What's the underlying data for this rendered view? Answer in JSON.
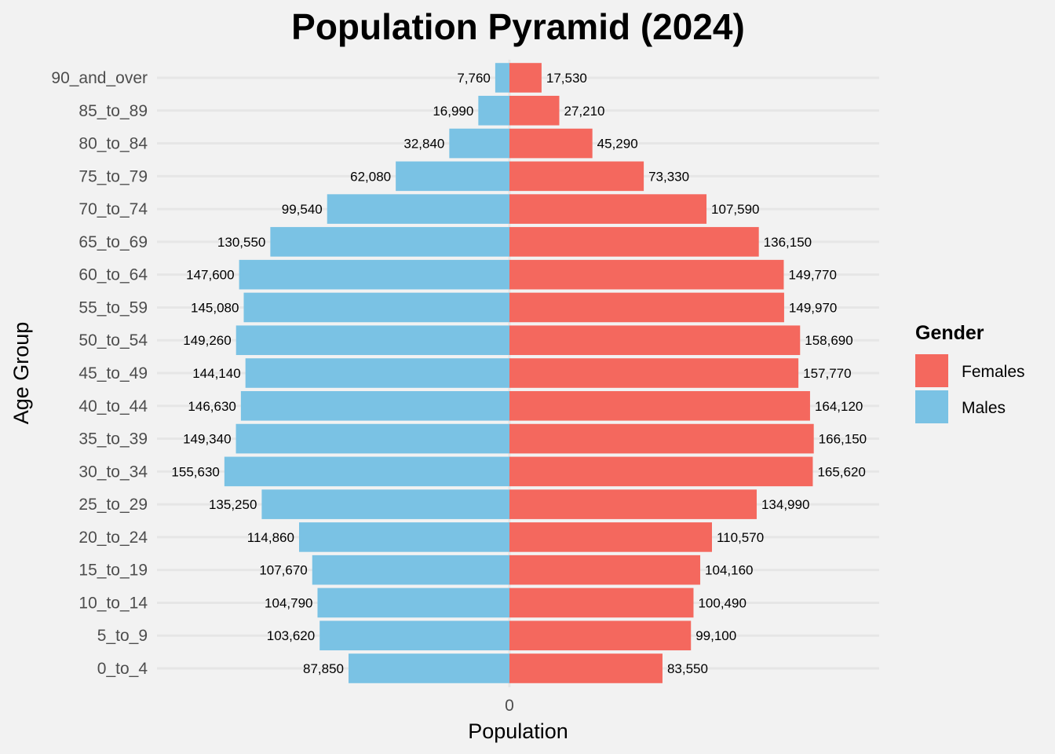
{
  "chart_data": {
    "type": "bar",
    "orientation": "horizontal",
    "title": "Population Pyramid (2024)",
    "xlabel": "Population",
    "ylabel": "Age Group",
    "x_tick_labels": [
      "0"
    ],
    "categories": [
      "0_to_4",
      "5_to_9",
      "10_to_14",
      "15_to_19",
      "20_to_24",
      "25_to_29",
      "30_to_34",
      "35_to_39",
      "40_to_44",
      "45_to_49",
      "50_to_54",
      "55_to_59",
      "60_to_64",
      "65_to_69",
      "70_to_74",
      "75_to_79",
      "80_to_84",
      "85_to_89",
      "90_and_over"
    ],
    "series": [
      {
        "name": "Males",
        "side": "left",
        "color": "#7ac2e4",
        "values": [
          87850,
          103620,
          104790,
          107670,
          114860,
          135250,
          155630,
          149340,
          146630,
          144140,
          149260,
          145080,
          147600,
          130550,
          99540,
          62080,
          32840,
          16990,
          7760
        ],
        "labels": [
          "87,850",
          "103,620",
          "104,790",
          "107,670",
          "114,860",
          "135,250",
          "155,630",
          "149,340",
          "146,630",
          "144,140",
          "149,260",
          "145,080",
          "147,600",
          "130,550",
          "99,540",
          "62,080",
          "32,840",
          "16,990",
          "7,760"
        ]
      },
      {
        "name": "Females",
        "side": "right",
        "color": "#f4685e",
        "values": [
          83550,
          99100,
          100490,
          104160,
          110570,
          134990,
          165620,
          166150,
          164120,
          157770,
          158690,
          149970,
          149770,
          136150,
          107590,
          73330,
          45290,
          27210,
          17530
        ],
        "labels": [
          "83,550",
          "99,100",
          "100,490",
          "104,160",
          "110,570",
          "134,990",
          "165,620",
          "166,150",
          "164,120",
          "157,770",
          "158,690",
          "149,970",
          "149,770",
          "136,150",
          "107,590",
          "73,330",
          "45,290",
          "27,210",
          "17,530"
        ]
      }
    ],
    "xlim": [
      -200000,
      200000
    ],
    "grid": "horizontal",
    "legend": {
      "title": "Gender",
      "position": "right",
      "entries": [
        {
          "label": "Females",
          "color": "#f4685e"
        },
        {
          "label": "Males",
          "color": "#7ac2e4"
        }
      ]
    }
  },
  "colors": {
    "background": "#f2f2f2",
    "gridline": "#e6e6e6",
    "tick_text": "#4d4d4d"
  }
}
